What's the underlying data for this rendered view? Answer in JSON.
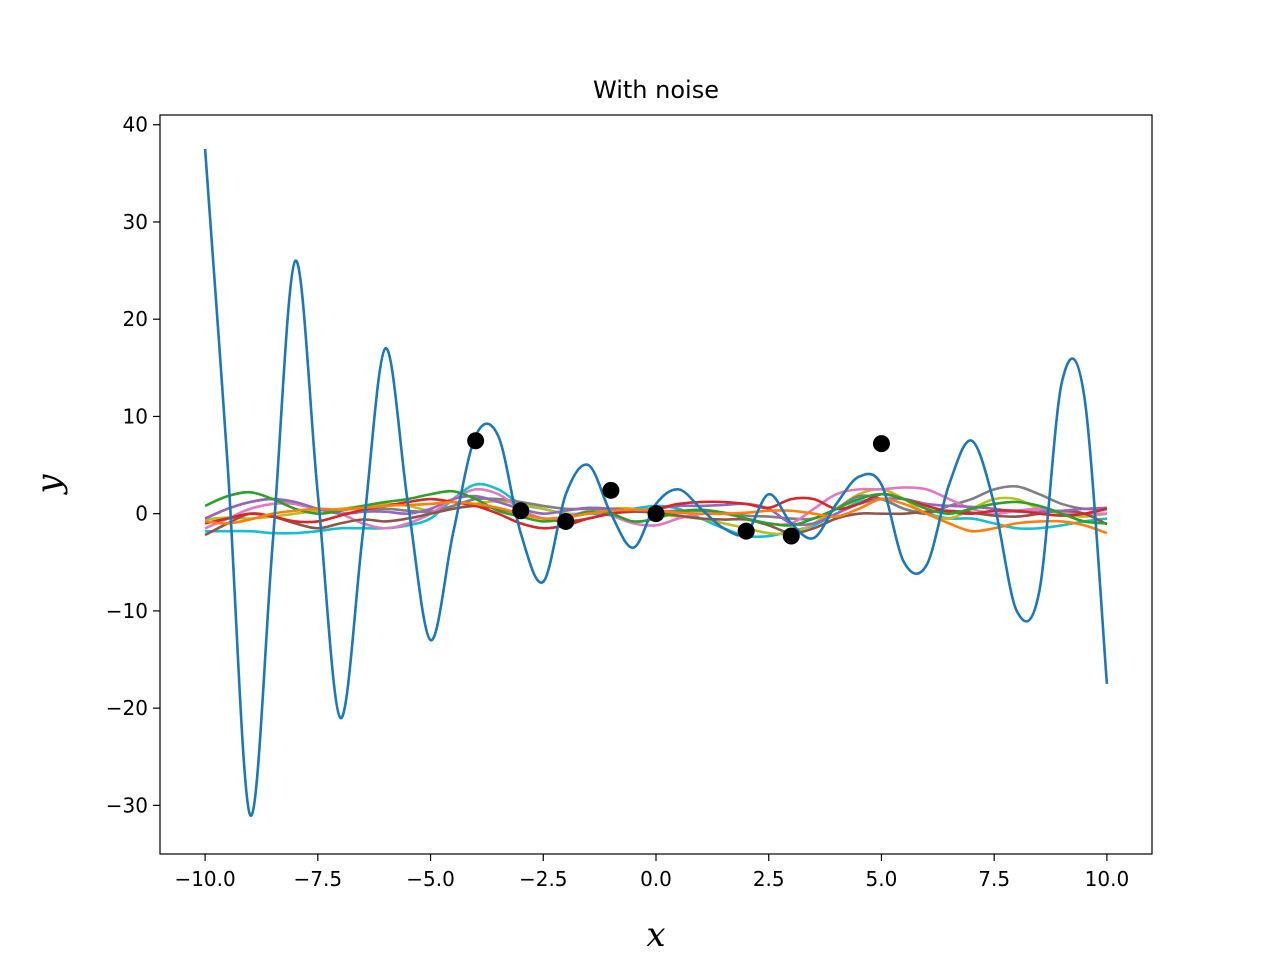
{
  "chart_data": {
    "type": "line",
    "title": "With noise",
    "xlabel": "x",
    "ylabel": "y",
    "xlim": [
      -11.0,
      11.0
    ],
    "ylim": [
      -35.0,
      41.0
    ],
    "xticks": [
      -10.0,
      -7.5,
      -5.0,
      -2.5,
      0.0,
      2.5,
      5.0,
      7.5,
      10.0
    ],
    "xtick_labels": [
      "−10.0",
      "−7.5",
      "−5.0",
      "−2.5",
      "0.0",
      "2.5",
      "5.0",
      "7.5",
      "10.0"
    ],
    "yticks": [
      -30,
      -20,
      -10,
      0,
      10,
      20,
      30,
      40
    ],
    "ytick_labels": [
      "−30",
      "−20",
      "−10",
      "0",
      "10",
      "20",
      "30",
      "40"
    ],
    "grid": false,
    "legend": "none",
    "x": [
      -10,
      -9.5,
      -9,
      -8.5,
      -8,
      -7.5,
      -7,
      -6.5,
      -6,
      -5.5,
      -5,
      -4.5,
      -4,
      -3.5,
      -3,
      -2.5,
      -2,
      -1.5,
      -1,
      -0.5,
      0,
      0.5,
      1,
      1.5,
      2,
      2.5,
      3,
      3.5,
      4,
      4.5,
      5,
      5.5,
      6,
      6.5,
      7,
      7.5,
      8,
      8.5,
      9,
      9.5,
      10
    ],
    "series": [
      {
        "color": "#1f77b4",
        "values": [
          37.5,
          5,
          -31,
          -3,
          26,
          2,
          -21,
          -2,
          17,
          1,
          -13,
          -2,
          8,
          8,
          -2,
          -7,
          2,
          5,
          0,
          -3.5,
          1,
          2.5,
          0.5,
          -1.5,
          -2,
          2,
          -1,
          -2.5,
          1,
          3.8,
          3,
          -5,
          -5.3,
          3,
          7.5,
          1,
          -10,
          -8,
          13.5,
          12,
          -17.5
        ]
      },
      {
        "color": "#ff7f0e",
        "values": [
          -0.8,
          -1,
          -0.6,
          0,
          0.3,
          0.5,
          0.4,
          0.6,
          0.8,
          0.9,
          1,
          1.2,
          1,
          0.6,
          0,
          -0.5,
          -0.4,
          0,
          0.3,
          0.4,
          0.3,
          0.1,
          0,
          0,
          0.1,
          0.3,
          0.3,
          0,
          -0.3,
          0.5,
          1.5,
          1,
          0,
          -1,
          -1.8,
          -1.5,
          -1,
          -0.8,
          -0.8,
          -1.2,
          -2
        ]
      },
      {
        "color": "#2ca02c",
        "values": [
          0.8,
          1.8,
          2.2,
          1.5,
          0.5,
          0,
          0.3,
          0.8,
          1.2,
          1.5,
          2,
          2.3,
          1.5,
          0.3,
          -0.3,
          -0.8,
          -0.5,
          0.2,
          0,
          -0.8,
          -0.5,
          0.2,
          0.4,
          0.1,
          -0.5,
          -1,
          -1.2,
          -0.5,
          0.5,
          1.5,
          2,
          1.5,
          0.5,
          0,
          0.5,
          1,
          1.2,
          0.8,
          0,
          -0.8,
          -1
        ]
      },
      {
        "color": "#d62728",
        "values": [
          -1,
          -0.5,
          0,
          -0.3,
          -0.8,
          -0.8,
          -0.2,
          0.4,
          0.8,
          1.2,
          1.5,
          1.2,
          0.8,
          0,
          -1,
          -1.5,
          -1.2,
          -0.5,
          0,
          0.3,
          0.5,
          1,
          1.2,
          1.2,
          1,
          0.6,
          1.5,
          1.5,
          0.5,
          1,
          2,
          1.5,
          0.8,
          0.2,
          0,
          0.3,
          0.3,
          0,
          -0.2,
          0,
          0.5
        ]
      },
      {
        "color": "#9467bd",
        "values": [
          -0.5,
          0.5,
          1.2,
          1.5,
          1.2,
          0.5,
          0,
          0.2,
          0.2,
          0,
          0.5,
          1.5,
          1.8,
          1.2,
          0.5,
          0,
          0.3,
          0.6,
          0.5,
          0.3,
          0.5,
          0.8,
          0.8,
          0.9,
          1,
          0.5,
          -1,
          -1,
          0,
          1,
          1.5,
          1.5,
          1,
          0.8,
          0.7,
          0.5,
          0.2,
          0.2,
          0.3,
          0.5,
          0.6
        ]
      },
      {
        "color": "#8c564b",
        "values": [
          -2.2,
          -1,
          0,
          -0.3,
          -1,
          -1.5,
          -1,
          -0.6,
          -0.8,
          -0.5,
          0,
          0.5,
          0.8,
          0.5,
          0,
          -0.5,
          -0.8,
          -0.5,
          0,
          0.2,
          0.1,
          -0.2,
          -0.5,
          -0.6,
          -0.6,
          -1.2,
          -2,
          -1.5,
          -0.5,
          0,
          0,
          0,
          0.2,
          0.3,
          0.1,
          -0.2,
          -0.3,
          0,
          0.3,
          0,
          -1.1
        ]
      },
      {
        "color": "#e377c2",
        "values": [
          -1.5,
          -0.5,
          0.5,
          1,
          1,
          0.5,
          0,
          -1,
          -1.5,
          -1,
          0,
          1.5,
          2.5,
          2,
          0.5,
          -0.5,
          -0.3,
          0.2,
          -0.2,
          -1,
          -1.2,
          -0.5,
          0,
          0,
          -0.5,
          -1,
          -1,
          0.5,
          2,
          2.5,
          2.5,
          2.7,
          2.5,
          1.5,
          0.5,
          0,
          0.3,
          0.5,
          0.2,
          0,
          0
        ]
      },
      {
        "color": "#7f7f7f",
        "values": [
          -0.5,
          0.5,
          1.2,
          1.5,
          1,
          0.5,
          0,
          0.2,
          0.5,
          0.3,
          0.2,
          0.8,
          1.5,
          1.5,
          1.2,
          0.8,
          0.5,
          0.5,
          0.5,
          0.3,
          0.2,
          0.3,
          0.3,
          0.1,
          -0.2,
          -0.3,
          -0.5,
          -0.5,
          0.5,
          1.8,
          1.5,
          0.5,
          0,
          0.8,
          1.5,
          2.5,
          2.8,
          2,
          1,
          0.5,
          0.5
        ]
      },
      {
        "color": "#bcbd22",
        "values": [
          -0.6,
          -0.4,
          -0.5,
          -0.3,
          0,
          0.3,
          0.5,
          0.8,
          1,
          0.8,
          0.3,
          0.5,
          1,
          1.3,
          1,
          0.5,
          0,
          0,
          0.5,
          0.5,
          0,
          -0.3,
          -0.5,
          -1,
          -1.5,
          -2,
          -2,
          -1,
          0.5,
          2,
          2.5,
          1.5,
          0,
          -0.5,
          0.5,
          1.5,
          1.5,
          0.5,
          0,
          -0.3,
          0
        ]
      },
      {
        "color": "#17becf",
        "values": [
          -1.8,
          -1.8,
          -1.8,
          -2,
          -2,
          -1.8,
          -1.5,
          -1.5,
          -1.5,
          -1.2,
          -0.5,
          1.5,
          3,
          2.5,
          1,
          0.5,
          0,
          0,
          0,
          0.5,
          0.8,
          0.5,
          -0.5,
          -1.5,
          -2.3,
          -2.3,
          -1.8,
          -1.2,
          0,
          1.2,
          1.5,
          0.5,
          0,
          -0.5,
          -0.5,
          -1,
          -1.5,
          -1.5,
          -1.2,
          -0.8,
          -0.5
        ]
      }
    ],
    "points": {
      "color": "#000000",
      "x": [
        -4,
        -3,
        -2,
        -1,
        0,
        2,
        3,
        5
      ],
      "y": [
        7.5,
        0.3,
        -0.8,
        2.4,
        0,
        -1.8,
        -2.3,
        7.2
      ]
    }
  }
}
